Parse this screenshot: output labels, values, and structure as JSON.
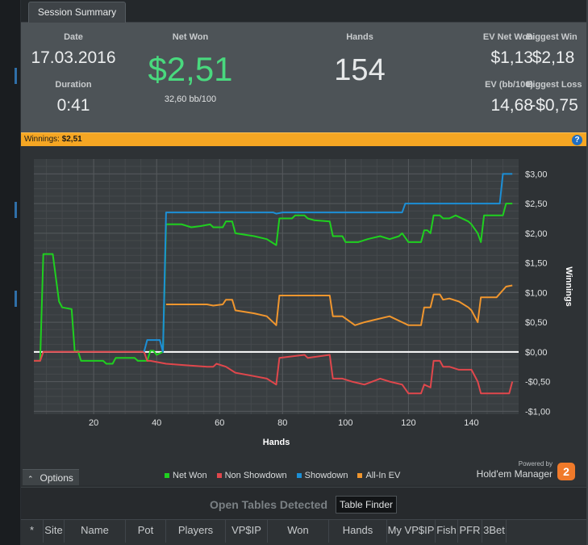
{
  "tab": {
    "label": "Session Summary"
  },
  "summary": {
    "date_label": "Date",
    "date_value": "17.03.2016",
    "duration_label": "Duration",
    "duration_value": "0:41",
    "netwon_label": "Net Won",
    "netwon_value": "$2,51",
    "netwon_sub": "32,60 bb/100",
    "hands_label": "Hands",
    "hands_value": "154",
    "evnetwon_label": "EV Net Won",
    "evnetwon_value": "$1,13",
    "bigwin_label": "Biggest Win",
    "bigwin_value": "$2,18",
    "evbb_label": "EV (bb/100)",
    "evbb_value": "14,68",
    "bigloss_label": "Biggest Loss",
    "bigloss_value": "-$0,75"
  },
  "winbar": {
    "label": "Winnings:",
    "value": "$2,51",
    "help_icon": "help-icon"
  },
  "colors": {
    "net_won": "#1fd01f",
    "non_showdown": "#e0474c",
    "showdown": "#1c8fd6",
    "allin_ev": "#f0962e",
    "accent": "#f5a623",
    "big_value": "#49d97e"
  },
  "chart_data": {
    "type": "line",
    "xlabel": "Hands",
    "ylabel": "Winnings",
    "xlim": [
      1,
      155
    ],
    "ylim": [
      -1.05,
      3.25
    ],
    "xticks": [
      20,
      40,
      60,
      80,
      100,
      120,
      140
    ],
    "yticks": [
      3,
      2.5,
      2,
      1.5,
      1,
      0.5,
      0,
      -0.5,
      -1
    ],
    "ytick_labels": [
      "$3,00",
      "$2,50",
      "$2,00",
      "$1,50",
      "$1,00",
      "$0,50",
      "$0,00",
      "-$0,50",
      "-$1,00"
    ],
    "grid": true,
    "legend": "bottom",
    "series": [
      {
        "name": "Net Won",
        "color": "#1fd01f",
        "points": [
          [
            1,
            -0.15
          ],
          [
            3,
            -0.15
          ],
          [
            4,
            1.65
          ],
          [
            7,
            1.65
          ],
          [
            8,
            1.25
          ],
          [
            9,
            0.85
          ],
          [
            10,
            0.75
          ],
          [
            13,
            0.72
          ],
          [
            14,
            0
          ],
          [
            15,
            0.02
          ],
          [
            16,
            -0.15
          ],
          [
            23,
            -0.15
          ],
          [
            24,
            -0.2
          ],
          [
            26,
            -0.2
          ],
          [
            27,
            -0.1
          ],
          [
            33,
            -0.1
          ],
          [
            34,
            -0.15
          ],
          [
            37,
            -0.15
          ],
          [
            38,
            0.02
          ],
          [
            39,
            0.02
          ],
          [
            40,
            -0.05
          ],
          [
            42,
            0
          ],
          [
            43,
            2.15
          ],
          [
            48,
            2.15
          ],
          [
            51,
            2.1
          ],
          [
            54,
            2.12
          ],
          [
            57,
            2.15
          ],
          [
            58,
            2.1
          ],
          [
            61,
            2.1
          ],
          [
            62,
            2.2
          ],
          [
            64,
            2.2
          ],
          [
            65,
            2.0
          ],
          [
            71,
            1.95
          ],
          [
            75,
            1.9
          ],
          [
            78,
            1.8
          ],
          [
            79,
            2.25
          ],
          [
            83,
            2.25
          ],
          [
            84,
            2.3
          ],
          [
            87,
            2.3
          ],
          [
            88,
            2.25
          ],
          [
            90,
            2.22
          ],
          [
            95,
            2.2
          ],
          [
            96,
            1.95
          ],
          [
            99,
            1.95
          ],
          [
            100,
            1.85
          ],
          [
            104,
            1.85
          ],
          [
            107,
            1.9
          ],
          [
            111,
            1.95
          ],
          [
            114,
            1.9
          ],
          [
            117,
            1.95
          ],
          [
            118,
            2.0
          ],
          [
            120,
            1.85
          ],
          [
            124,
            1.85
          ],
          [
            125,
            2.05
          ],
          [
            126,
            2.05
          ],
          [
            127,
            2.0
          ],
          [
            128,
            2.3
          ],
          [
            130,
            2.3
          ],
          [
            131,
            2.25
          ],
          [
            133,
            2.25
          ],
          [
            135,
            2.3
          ],
          [
            139,
            2.2
          ],
          [
            140,
            2.15
          ],
          [
            142,
            2.0
          ],
          [
            143,
            1.85
          ],
          [
            144,
            2.3
          ],
          [
            150,
            2.3
          ],
          [
            151,
            2.5
          ],
          [
            153,
            2.5
          ]
        ]
      },
      {
        "name": "Non Showdown",
        "color": "#e0474c",
        "points": [
          [
            1,
            -0.15
          ],
          [
            3,
            -0.15
          ],
          [
            4,
            0
          ],
          [
            36,
            0
          ],
          [
            37,
            -0.15
          ],
          [
            38,
            -0.15
          ],
          [
            43,
            -0.2
          ],
          [
            48,
            -0.22
          ],
          [
            56,
            -0.25
          ],
          [
            58,
            -0.25
          ],
          [
            59,
            -0.2
          ],
          [
            62,
            -0.25
          ],
          [
            65,
            -0.35
          ],
          [
            70,
            -0.4
          ],
          [
            75,
            -0.45
          ],
          [
            78,
            -0.55
          ],
          [
            79,
            -0.1
          ],
          [
            87,
            -0.05
          ],
          [
            88,
            -0.1
          ],
          [
            95,
            -0.05
          ],
          [
            96,
            -0.45
          ],
          [
            99,
            -0.45
          ],
          [
            102,
            -0.5
          ],
          [
            106,
            -0.55
          ],
          [
            111,
            -0.45
          ],
          [
            114,
            -0.5
          ],
          [
            118,
            -0.55
          ],
          [
            120,
            -0.7
          ],
          [
            124,
            -0.7
          ],
          [
            125,
            -0.55
          ],
          [
            127,
            -0.6
          ],
          [
            128,
            -0.15
          ],
          [
            130,
            -0.15
          ],
          [
            131,
            -0.25
          ],
          [
            133,
            -0.25
          ],
          [
            136,
            -0.3
          ],
          [
            140,
            -0.3
          ],
          [
            142,
            -0.5
          ],
          [
            143,
            -0.7
          ],
          [
            152,
            -0.7
          ],
          [
            153,
            -0.5
          ]
        ]
      },
      {
        "name": "Showdown",
        "color": "#1c8fd6",
        "points": [
          [
            36,
            0
          ],
          [
            37,
            0.2
          ],
          [
            41,
            0.2
          ],
          [
            42,
            0
          ],
          [
            43,
            2.35
          ],
          [
            77,
            2.35
          ],
          [
            78,
            2.33
          ],
          [
            80,
            2.35
          ],
          [
            118,
            2.35
          ],
          [
            119,
            2.5
          ],
          [
            149,
            2.5
          ],
          [
            150,
            3.0
          ],
          [
            153,
            3.0
          ]
        ]
      },
      {
        "name": "All-In EV",
        "color": "#f0962e",
        "points": [
          [
            43,
            0.8
          ],
          [
            56,
            0.8
          ],
          [
            58,
            0.78
          ],
          [
            61,
            0.8
          ],
          [
            62,
            0.88
          ],
          [
            64,
            0.88
          ],
          [
            65,
            0.7
          ],
          [
            71,
            0.65
          ],
          [
            75,
            0.6
          ],
          [
            78,
            0.45
          ],
          [
            79,
            0.95
          ],
          [
            84,
            0.95
          ],
          [
            90,
            0.95
          ],
          [
            95,
            0.95
          ],
          [
            96,
            0.6
          ],
          [
            99,
            0.6
          ],
          [
            103,
            0.45
          ],
          [
            106,
            0.5
          ],
          [
            110,
            0.55
          ],
          [
            114,
            0.6
          ],
          [
            118,
            0.5
          ],
          [
            120,
            0.45
          ],
          [
            124,
            0.45
          ],
          [
            125,
            0.75
          ],
          [
            127,
            0.75
          ],
          [
            128,
            0.97
          ],
          [
            130,
            0.97
          ],
          [
            131,
            0.88
          ],
          [
            133,
            0.9
          ],
          [
            136,
            0.85
          ],
          [
            139,
            0.75
          ],
          [
            140,
            0.7
          ],
          [
            142,
            0.5
          ],
          [
            143,
            0.92
          ],
          [
            148,
            0.92
          ],
          [
            151,
            1.1
          ],
          [
            153,
            1.12
          ]
        ]
      }
    ]
  },
  "options": {
    "label": "Options"
  },
  "logo": {
    "powered": "Powered by",
    "name": "Hold'em Manager",
    "badge": "2"
  },
  "open_tables": {
    "title": "Open Tables Detected",
    "finder_label": "Table Finder"
  },
  "table": {
    "columns": [
      "*",
      "Site",
      "Name",
      "Pot",
      "Players",
      "VP$IP",
      "Won",
      "Hands",
      "My VP$IP",
      "Fish",
      "PFR",
      "3Bet"
    ]
  }
}
